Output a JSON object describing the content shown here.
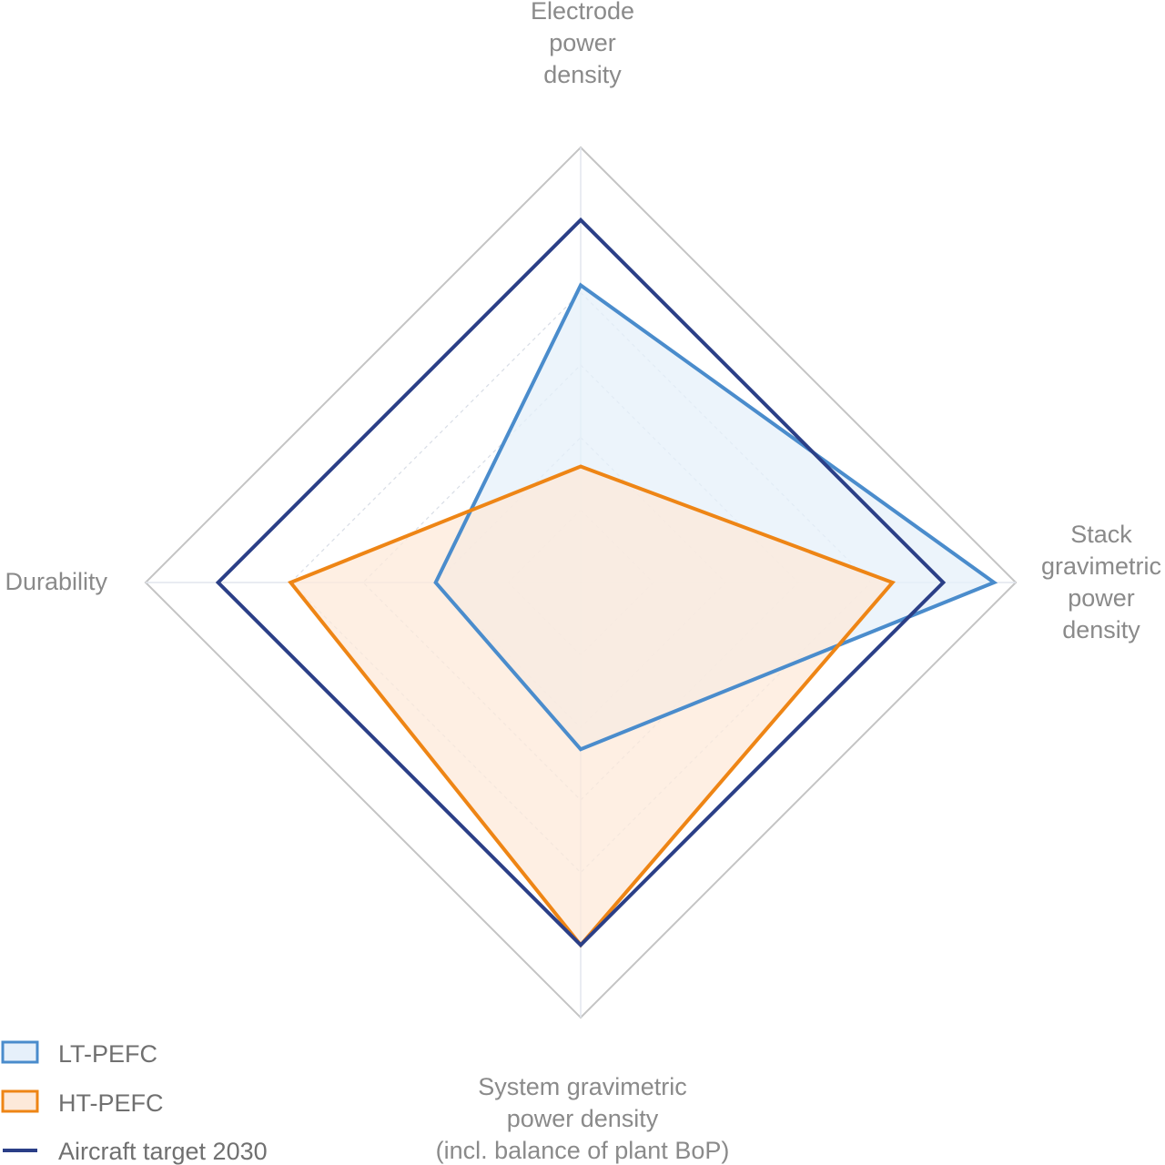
{
  "chart_data": {
    "type": "radar",
    "title": "",
    "axes": [
      {
        "key": "electrode",
        "label_lines": [
          "Electrode",
          "power",
          "density"
        ]
      },
      {
        "key": "stack",
        "label_lines": [
          "Stack",
          "gravimetric",
          "power",
          "density"
        ]
      },
      {
        "key": "system",
        "label_lines": [
          "System gravimetric",
          "power density",
          "(incl. balance of plant BoP)"
        ]
      },
      {
        "key": "durability",
        "label_lines": [
          "Durability"
        ]
      }
    ],
    "range": [
      0,
      6
    ],
    "rings": 6,
    "series": [
      {
        "name": "LT-PEFC",
        "values": [
          4.1,
          5.7,
          2.3,
          2.0
        ],
        "stroke": "#4a8ccc",
        "fill": "#e6f0fa"
      },
      {
        "name": "HT-PEFC",
        "values": [
          1.6,
          4.3,
          5.0,
          4.0
        ],
        "stroke": "#ee8515",
        "fill": "#fde9d9"
      },
      {
        "name": "Aircraft target 2030",
        "values": [
          5.0,
          5.0,
          5.0,
          5.0
        ],
        "stroke": "#2b3f87",
        "fill": "none"
      }
    ],
    "legend_position": "bottom-left"
  }
}
